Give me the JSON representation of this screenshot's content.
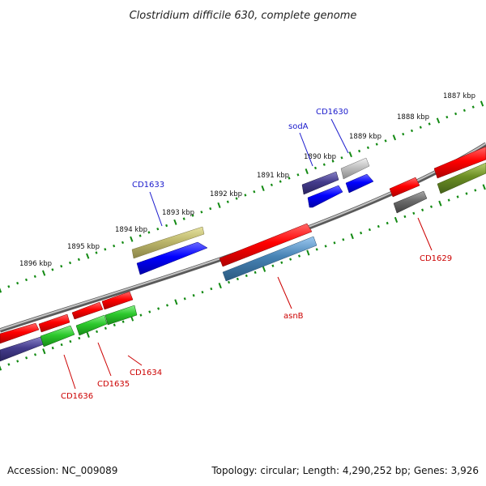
{
  "title": "Clostridium difficile 630, complete genome",
  "footer": {
    "accession": "Accession: NC_009089",
    "summary": "Topology: circular; Length: 4,290,252 bp; Genes: 3,926"
  },
  "colors": {
    "label_top": "#1a1acc",
    "label_bottom": "#cc0000",
    "tick": "#138a13",
    "backbone": "#8a8a8a"
  },
  "ticks": [
    {
      "label": "1887 kbp"
    },
    {
      "label": "1888 kbp"
    },
    {
      "label": "1889 kbp"
    },
    {
      "label": "1890 kbp"
    },
    {
      "label": "1891 kbp"
    },
    {
      "label": "1892 kbp"
    },
    {
      "label": "1893 kbp"
    },
    {
      "label": "1894 kbp"
    },
    {
      "label": "1895 kbp"
    },
    {
      "label": "1896 kbp"
    }
  ],
  "gene_labels": {
    "cd1630": "CD1630",
    "soda": "sodA",
    "cd1633": "CD1633",
    "cd1629": "CD1629",
    "asnb": "asnB",
    "cd1634": "CD1634",
    "cd1635": "CD1635",
    "cd1636": "CD1636"
  }
}
